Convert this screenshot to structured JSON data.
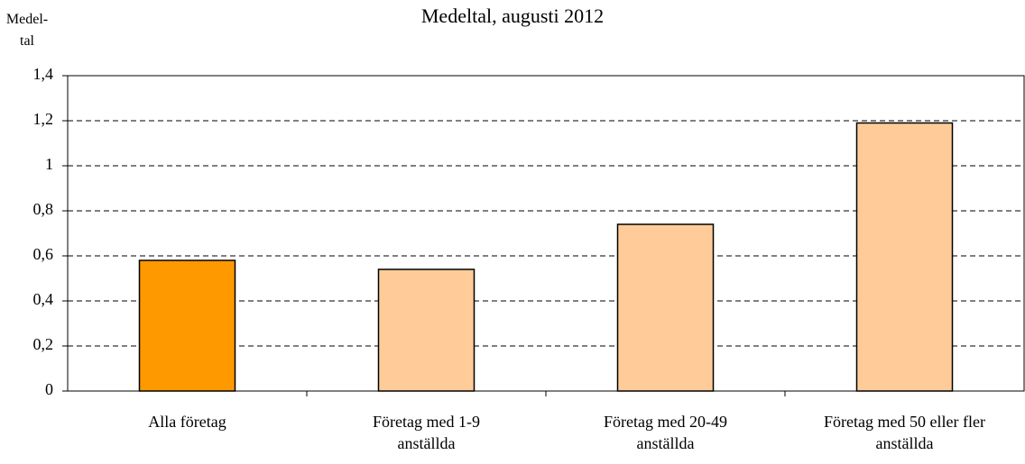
{
  "chart_data": {
    "type": "bar",
    "title": "Medeltal, augusti 2012",
    "ylabel": "Medel-\ntal",
    "categories": [
      "Alla företag",
      "Företag med 1-9\nanställda",
      "Företag med 20-49\nanställda",
      "Företag med 50 eller fler\nanställda"
    ],
    "values": [
      0.58,
      0.54,
      0.74,
      1.19
    ],
    "colors": [
      "#ff9900",
      "#ffcc99",
      "#ffcc99",
      "#ffcc99"
    ],
    "ylim": [
      0,
      1.4
    ],
    "yticks": [
      0,
      {
        "value": 0.2,
        "label": "0,2"
      },
      {
        "value": 0.4,
        "label": "0,4"
      },
      {
        "value": 0.6,
        "label": "0,6"
      },
      {
        "value": 0.8,
        "label": "0,8"
      },
      1,
      {
        "value": 1.2,
        "label": "1,2"
      },
      {
        "value": 1.4,
        "label": "1,4"
      }
    ],
    "grid": true
  }
}
